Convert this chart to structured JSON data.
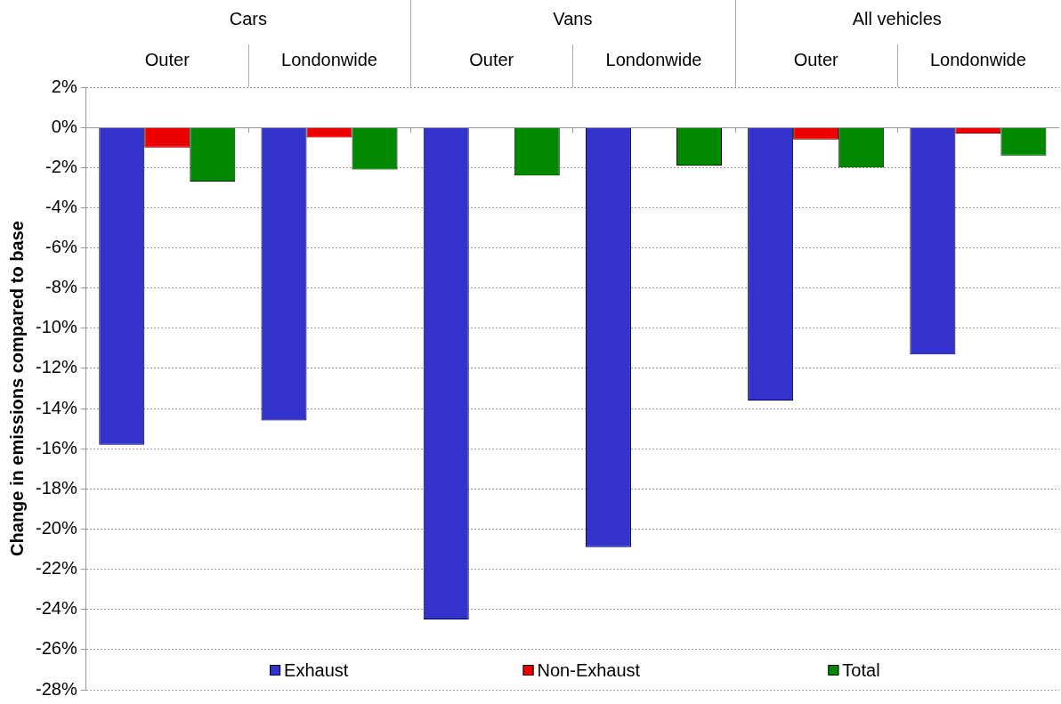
{
  "chart_data": {
    "type": "bar",
    "ylabel": "Change in emissions compared to base",
    "categories": [
      "Outer",
      "Londonwide",
      "Outer",
      "Londonwide",
      "Outer",
      "Londonwide"
    ],
    "annotations": [
      "Cars",
      "Vans",
      "All vehicles"
    ],
    "series": [
      {
        "name": "Exhaust",
        "color": "#3333cc",
        "values": [
          -15.8,
          -14.6,
          -24.5,
          -20.9,
          -13.6,
          -11.3
        ]
      },
      {
        "name": "Non-Exhaust",
        "color": "#ee0000",
        "values": [
          -1.0,
          -0.5,
          null,
          null,
          -0.6,
          -0.3
        ]
      },
      {
        "name": "Total",
        "color": "#008800",
        "values": [
          -2.7,
          -2.1,
          -2.4,
          -1.9,
          -2.0,
          -1.4
        ]
      }
    ],
    "ylim": [
      -28,
      2
    ],
    "yticks": [
      {
        "value": 2,
        "label": "2%"
      },
      {
        "value": 0,
        "label": "0%"
      },
      {
        "value": -2,
        "label": "-2%"
      },
      {
        "value": -4,
        "label": "-4%"
      },
      {
        "value": -6,
        "label": "-6%"
      },
      {
        "value": -8,
        "label": "-8%"
      },
      {
        "value": -10,
        "label": "-10%"
      },
      {
        "value": -12,
        "label": "-12%"
      },
      {
        "value": -14,
        "label": "-14%"
      },
      {
        "value": -16,
        "label": "-16%"
      },
      {
        "value": -18,
        "label": "-18%"
      },
      {
        "value": -20,
        "label": "-20%"
      },
      {
        "value": -22,
        "label": "-22%"
      },
      {
        "value": -24,
        "label": "-24%"
      },
      {
        "value": -26,
        "label": "-26%"
      },
      {
        "value": -28,
        "label": "-28%"
      }
    ],
    "grid": "y",
    "legend": "bottom"
  }
}
